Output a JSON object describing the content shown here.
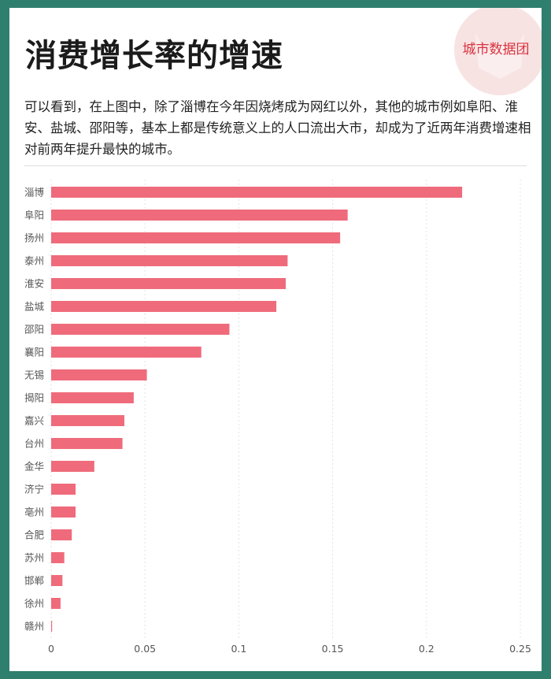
{
  "title": "消费增长率的增速",
  "description": "可以看到，在上图中，除了淄博在今年因烧烤成为网红以外，其他的城市例如阜阳、淮安、盐城、邵阳等，基本上都是传统意义上的人口流出大市，却成为了近两年消费增速相对前两年提升最快的城市。",
  "logo": {
    "text": "城市数据团",
    "color": "#d9333f"
  },
  "colors": {
    "bar": "#ef6b7b",
    "frame": "#2f7f6e",
    "grid": "#e3e3e3"
  },
  "chart_data": {
    "type": "bar",
    "orientation": "horizontal",
    "categories": [
      "淄博",
      "阜阳",
      "扬州",
      "泰州",
      "淮安",
      "盐城",
      "邵阳",
      "襄阳",
      "无锡",
      "揭阳",
      "嘉兴",
      "台州",
      "金华",
      "济宁",
      "亳州",
      "合肥",
      "苏州",
      "邯郸",
      "徐州",
      "赣州"
    ],
    "values": [
      0.219,
      0.158,
      0.154,
      0.126,
      0.125,
      0.12,
      0.095,
      0.08,
      0.051,
      0.044,
      0.039,
      0.038,
      0.023,
      0.013,
      0.013,
      0.011,
      0.007,
      0.006,
      0.005,
      0.0005
    ],
    "xlim": [
      0,
      0.25
    ],
    "xticks": [
      "0",
      "0.05",
      "0.1",
      "0.15",
      "0.2",
      "0.25"
    ],
    "xtick_values": [
      0,
      0.05,
      0.1,
      0.15,
      0.2,
      0.25
    ],
    "grid": true
  }
}
